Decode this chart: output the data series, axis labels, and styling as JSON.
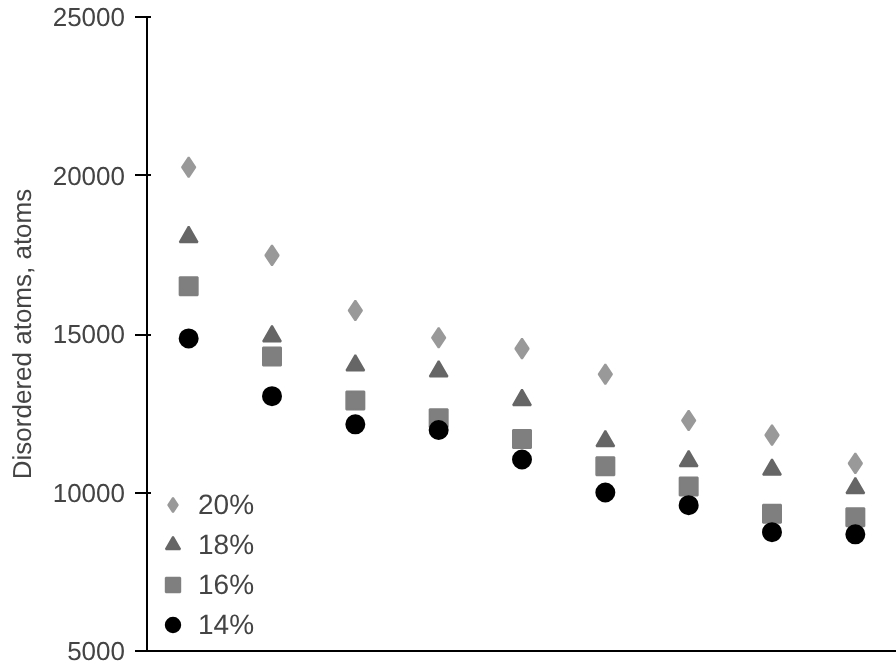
{
  "chart_data": {
    "type": "scatter",
    "ylabel": "Disordered atoms, atoms",
    "categories": [
      null,
      null,
      null,
      null,
      null,
      null,
      null,
      null,
      null
    ],
    "ylim": [
      5000,
      25000
    ],
    "yticks": [
      5000,
      10000,
      15000,
      20000,
      25000
    ],
    "tick_labels": "y",
    "grid": false,
    "legend": "bottom left",
    "series": [
      {
        "name": "20%",
        "color": "#999999",
        "marker": "diamond",
        "values": [
          20260,
          17480,
          15740,
          14880,
          14540,
          13730,
          12270,
          11810,
          10920
        ]
      },
      {
        "name": "18%",
        "color": "#666666",
        "marker": "triangle",
        "values": [
          18060,
          14930,
          14010,
          13820,
          12920,
          11620,
          10990,
          10720,
          10140
        ]
      },
      {
        "name": "16%",
        "color": "#7f7f7f",
        "marker": "square",
        "values": [
          16510,
          14290,
          12900,
          12340,
          11690,
          10830,
          10190,
          9330,
          9220
        ]
      },
      {
        "name": "14%",
        "color": "#000000",
        "marker": "circle",
        "values": [
          14860,
          13040,
          12150,
          11970,
          11040,
          10000,
          9600,
          8750,
          8680
        ]
      }
    ]
  }
}
